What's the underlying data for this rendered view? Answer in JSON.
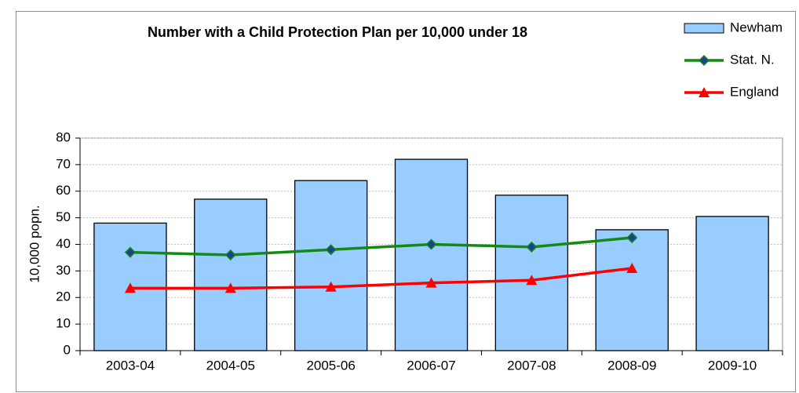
{
  "chart_data": {
    "type": "bar",
    "title": "Number with a Child Protection Plan per 10,000 under 18",
    "y_label": "10,000 popn.",
    "categories": [
      "2003-04",
      "2004-05",
      "2005-06",
      "2006-07",
      "2007-08",
      "2008-09",
      "2009-10"
    ],
    "series": [
      {
        "name": "Newham",
        "type": "bar",
        "color": "#99ccff",
        "values": [
          48,
          57,
          64,
          72,
          58.5,
          45.5,
          50.5
        ]
      },
      {
        "name": "Stat. N.",
        "type": "line",
        "marker": "diamond",
        "color": "#138a13",
        "values": [
          37,
          36,
          38,
          40,
          39,
          42.5,
          null
        ]
      },
      {
        "name": "England",
        "type": "line",
        "marker": "triangle",
        "color": "#ff0000",
        "values": [
          23.5,
          23.5,
          24,
          25.5,
          26.5,
          31,
          null
        ]
      }
    ],
    "ylim": [
      0,
      80
    ],
    "yticks": [
      0,
      10,
      20,
      30,
      40,
      50,
      60,
      70,
      80
    ],
    "grid": true,
    "legend": "top-right"
  }
}
